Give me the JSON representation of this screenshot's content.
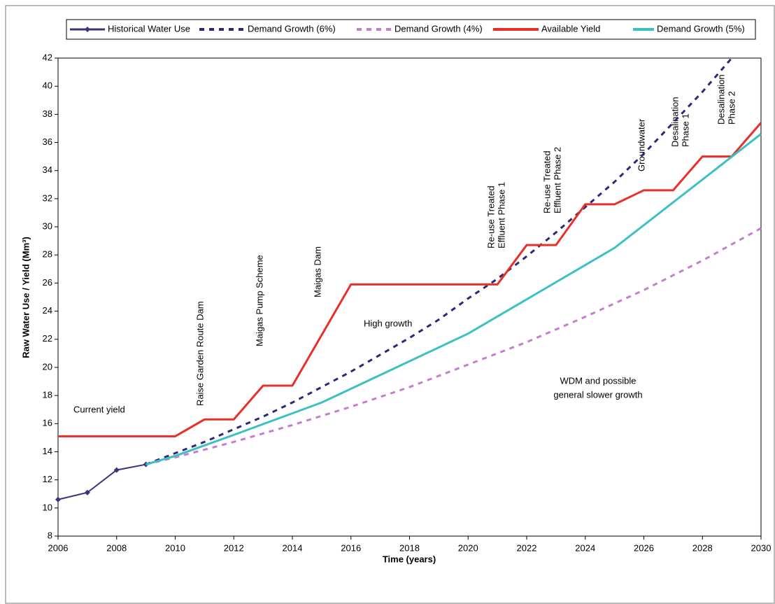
{
  "chart_data": {
    "type": "line",
    "xlabel": "Time (years)",
    "ylabel": "Raw Water Use / Yield (Mm³)",
    "xlim": [
      2006,
      2030
    ],
    "xticks": [
      2006,
      2008,
      2010,
      2012,
      2014,
      2016,
      2018,
      2020,
      2022,
      2024,
      2026,
      2028,
      2030
    ],
    "ylim": [
      8,
      42
    ],
    "yticks": [
      8,
      10,
      12,
      14,
      16,
      18,
      20,
      22,
      24,
      26,
      28,
      30,
      32,
      34,
      36,
      38,
      40,
      42
    ],
    "grid": false,
    "legend": "top",
    "series": [
      {
        "name": "Historical Water Use",
        "color": "#3b3478",
        "dash": "solid",
        "marker": "diamond",
        "x": [
          2006,
          2007,
          2008,
          2009
        ],
        "values": [
          10.6,
          11.1,
          12.7,
          13.1
        ]
      },
      {
        "name": "Demand Growth (6%)",
        "color": "#2b2a78",
        "dash": "dashed",
        "marker": "none",
        "x": [
          2009,
          2010,
          2011,
          2012,
          2013,
          2014,
          2015,
          2016,
          2017,
          2018,
          2019,
          2020,
          2021,
          2022,
          2023,
          2024,
          2025,
          2026,
          2027,
          2028,
          2029
        ],
        "values": [
          13.1,
          13.9,
          14.7,
          15.6,
          16.5,
          17.5,
          18.6,
          19.7,
          20.9,
          22.1,
          23.4,
          24.9,
          26.3,
          27.9,
          29.6,
          31.4,
          33.2,
          35.2,
          37.4,
          39.6,
          42.0
        ]
      },
      {
        "name": "Demand Growth (4%)",
        "color": "#c77dcf",
        "dash": "dashed",
        "marker": "none",
        "x": [
          2009,
          2010,
          2012,
          2014,
          2016,
          2018,
          2020,
          2022,
          2024,
          2026,
          2028,
          2030
        ],
        "values": [
          13.1,
          13.6,
          14.7,
          15.9,
          17.2,
          18.6,
          20.2,
          21.8,
          23.6,
          25.5,
          27.6,
          29.9
        ]
      },
      {
        "name": "Available Yield",
        "color": "#e8302a",
        "dash": "solid",
        "marker": "none",
        "x": [
          2006,
          2010,
          2011,
          2012,
          2013,
          2014,
          2016,
          2021,
          2022,
          2023,
          2024,
          2025,
          2026,
          2027,
          2028,
          2029,
          2030
        ],
        "values": [
          15.1,
          15.1,
          16.3,
          16.3,
          18.7,
          18.7,
          25.9,
          25.9,
          28.7,
          28.7,
          31.6,
          31.6,
          32.6,
          32.6,
          35.0,
          35.0,
          37.4
        ]
      },
      {
        "name": "Demand Growth (5%)",
        "color": "#3cc0c4",
        "dash": "solid",
        "marker": "none",
        "x": [
          2009,
          2010,
          2012,
          2015,
          2020,
          2025,
          2030
        ],
        "values": [
          13.1,
          13.7,
          15.2,
          17.5,
          22.4,
          28.5,
          36.6
        ]
      }
    ],
    "annotations": [
      [
        "Current yield"
      ],
      [
        "Raise Garden Route Dam"
      ],
      [
        "Maigas Pump  Scheme"
      ],
      [
        "Maigas Dam"
      ],
      [
        "High growth"
      ],
      [
        "Re-use Treated",
        "Effluent Phase 1"
      ],
      [
        "Re-use Treated",
        "Effluent Phase 2"
      ],
      [
        "Groundwater"
      ],
      [
        "Desalination",
        "Phase 1"
      ],
      [
        "Desalination",
        "Phase 2"
      ],
      [
        "WDM and possible",
        "general slower growth"
      ]
    ]
  }
}
